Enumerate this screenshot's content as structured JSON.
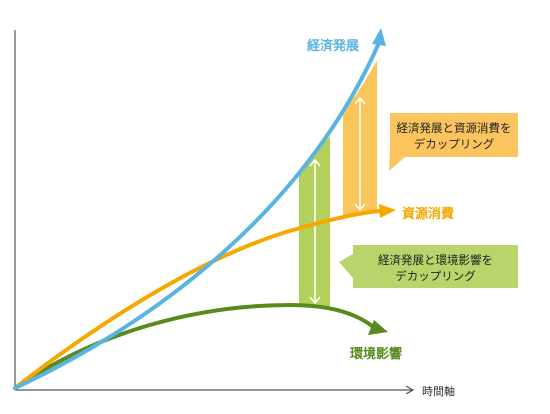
{
  "colors": {
    "economic": "#5ab4e2",
    "resource": "#f5a800",
    "resource_band": "#fac65a",
    "resource_callout": "#fbc45e",
    "environment": "#5a8a1e",
    "environment_band": "#b4d05c",
    "environment_callout": "#b8d46a",
    "axis": "#555555"
  },
  "labels": {
    "economic": "経済発展",
    "resource": "資源消費",
    "environment": "環境影響",
    "x_axis": "時間軸"
  },
  "callouts": {
    "resource_line1": "経済発展と資源消費を",
    "resource_line2": "デカップリング",
    "environment_line1": "経済発展と環境影響を",
    "environment_line2": "デカップリング"
  }
}
